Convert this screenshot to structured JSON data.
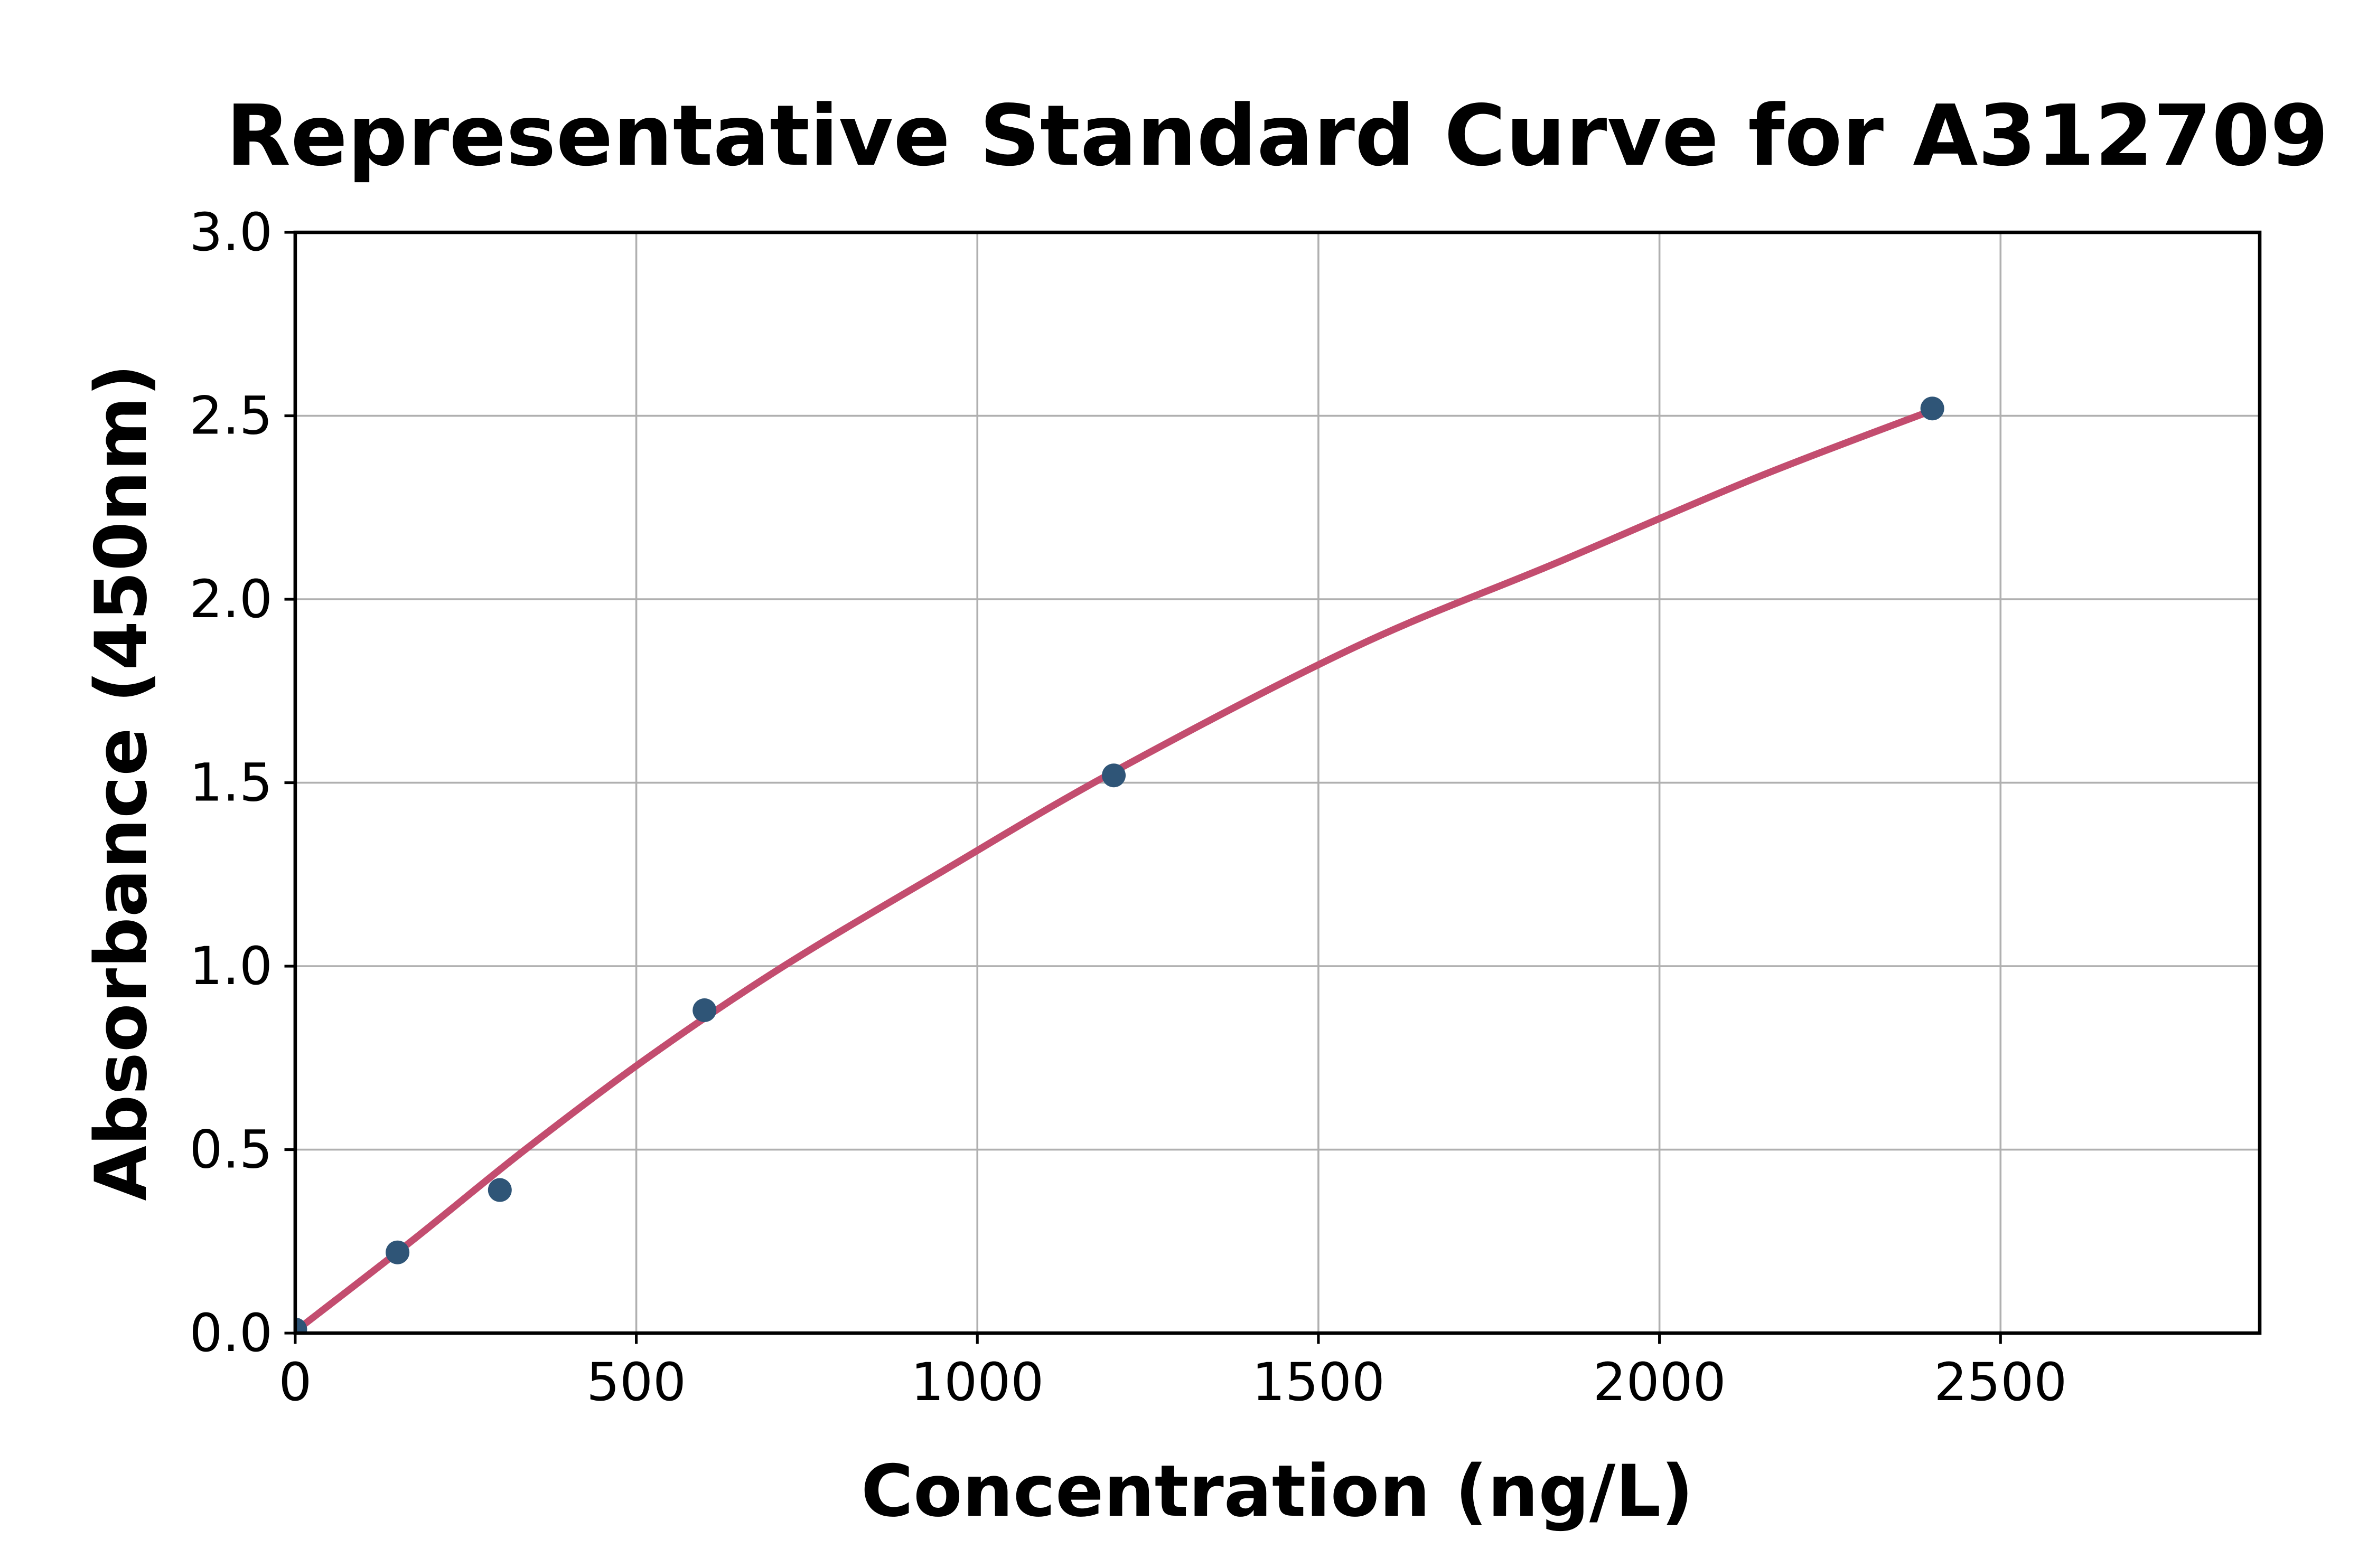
{
  "window": {
    "background": "#FFFFFF"
  },
  "chart_data": {
    "type": "scatter",
    "title": "Representative Standard Curve for A312709",
    "xlabel": "Concentration (ng/L)",
    "ylabel": "Absorbance (450nm)",
    "x_axis": {
      "min": 0,
      "max": 2880,
      "tick_values": [
        0,
        500,
        1000,
        1500,
        2000,
        2500
      ],
      "tick_labels": [
        "0",
        "500",
        "1000",
        "1500",
        "2000",
        "2500"
      ]
    },
    "y_axis": {
      "min": 0,
      "max": 3.0,
      "tick_values": [
        0,
        0.5,
        1.0,
        1.5,
        2.0,
        2.5,
        3.0
      ],
      "tick_labels": [
        "0.0",
        "0.5",
        "1.0",
        "1.5",
        "2.0",
        "2.5",
        "3.0"
      ]
    },
    "grid": true,
    "legend_position": "none",
    "series": [
      {
        "name": "standard-points",
        "type": "scatter",
        "marker": "circle",
        "color": "#2F5577",
        "points": [
          [
            0,
            0.01
          ],
          [
            150,
            0.22
          ],
          [
            300,
            0.39
          ],
          [
            600,
            0.88
          ],
          [
            1200,
            1.52
          ],
          [
            2400,
            2.52
          ]
        ]
      },
      {
        "name": "fit-curve",
        "type": "line",
        "color": "#C34D6F",
        "points": [
          [
            0,
            0.005
          ],
          [
            170,
            0.25
          ],
          [
            337,
            0.5
          ],
          [
            520,
            0.755
          ],
          [
            716,
            1.0
          ],
          [
            950,
            1.26
          ],
          [
            1200,
            1.53
          ],
          [
            1554,
            1.87
          ],
          [
            1850,
            2.1
          ],
          [
            2140,
            2.33
          ],
          [
            2400,
            2.515
          ]
        ]
      }
    ],
    "colors": {
      "grid": "#B0B0B0",
      "axis": "#000000",
      "text": "#000000",
      "background": "#FFFFFF"
    }
  }
}
